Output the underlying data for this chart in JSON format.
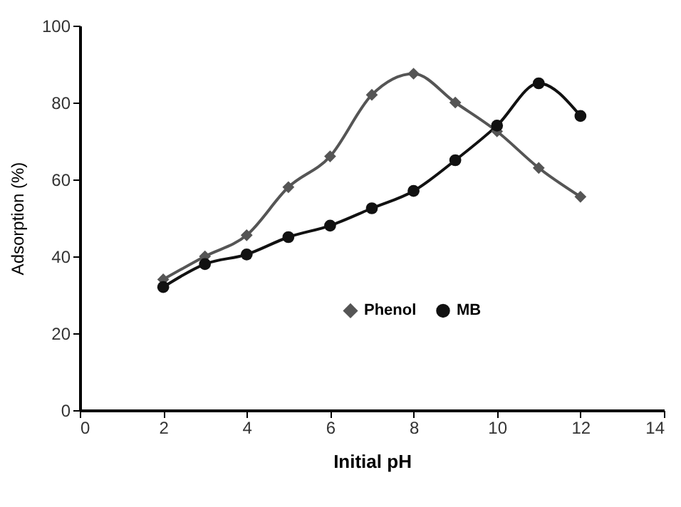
{
  "chart_data": {
    "type": "line",
    "xlabel": "Initial pH",
    "ylabel": "Adsorption (%)",
    "x": [
      2,
      3,
      4,
      5,
      6,
      7,
      8,
      9,
      10,
      11,
      12
    ],
    "series": [
      {
        "name": "Phenol",
        "color": "#555555",
        "marker": "diamond",
        "values": [
          34,
          40,
          45.5,
          58,
          66,
          82,
          87.5,
          80,
          72.5,
          63,
          55.5
        ]
      },
      {
        "name": "MB",
        "color": "#111111",
        "marker": "circle",
        "values": [
          32,
          38,
          40.5,
          45,
          48,
          52.5,
          57,
          65,
          74,
          85,
          76.5
        ]
      }
    ],
    "xlim": [
      0,
      14
    ],
    "xticks": [
      0,
      2,
      4,
      6,
      8,
      10,
      12,
      14
    ],
    "ylim": [
      0,
      100
    ],
    "yticks": [
      0,
      20,
      40,
      60,
      80,
      100
    ],
    "grid": false,
    "legend": "bottom",
    "line_style": "solid"
  }
}
